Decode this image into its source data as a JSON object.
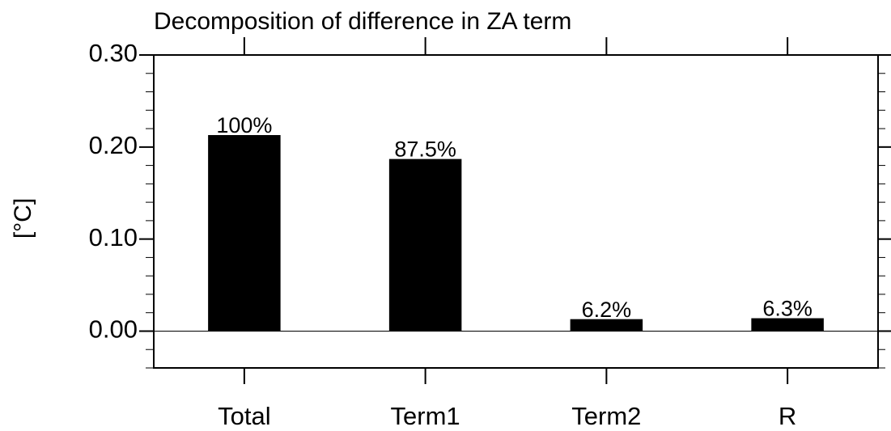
{
  "chart_data": {
    "type": "bar",
    "title": "Decomposition of difference in ZA term",
    "y_label": "[°C]",
    "categories": [
      "Total",
      "Term1",
      "Term2",
      "R"
    ],
    "values": [
      0.213,
      0.187,
      0.013,
      0.014
    ],
    "share_labels": [
      "100%",
      "87.5%",
      "6.2%",
      "6.3%"
    ],
    "color": "#000000",
    "ylim": [
      -0.04,
      0.3
    ],
    "yticks": [
      {
        "value": 0,
        "label": "0.00"
      },
      {
        "value": 0.1,
        "label": "0.10"
      },
      {
        "value": 0.2,
        "label": "0.20"
      },
      {
        "value": 0.3,
        "label": "0.30"
      }
    ],
    "yminor_ticks": [
      -0.04,
      -0.02,
      0.02,
      0.04,
      0.06,
      0.08,
      0.12,
      0.14,
      0.16,
      0.18,
      0.22,
      0.24,
      0.26,
      0.28
    ],
    "reference_line": 0
  }
}
